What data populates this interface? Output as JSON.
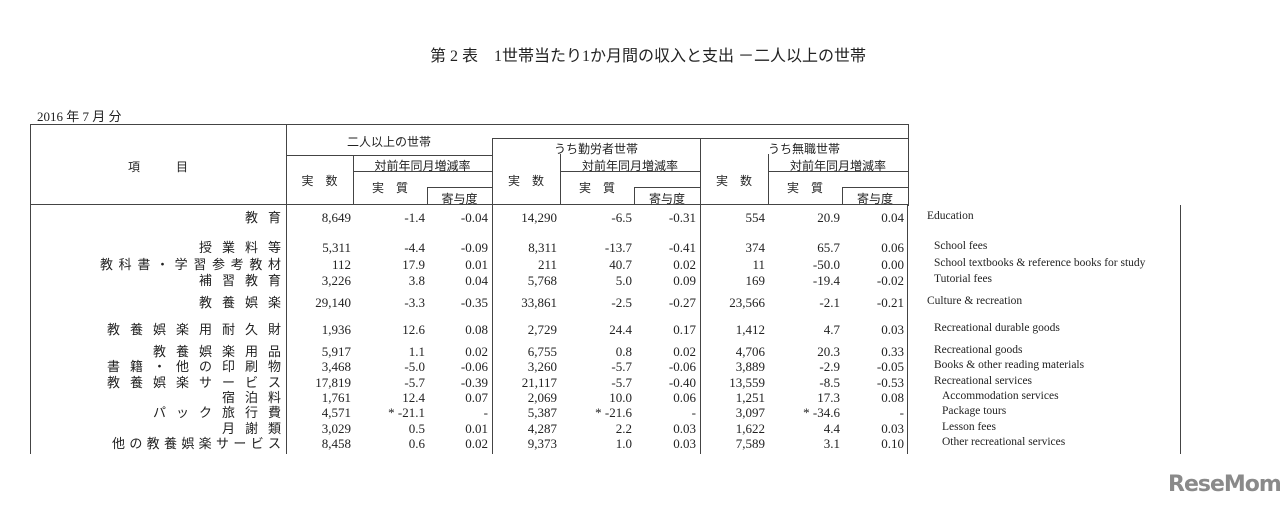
{
  "title": "第 2 表　1世帯当たり1か月間の収入と支出 －二人以上の世帯",
  "period": "2016 年  7  月  分",
  "header": {
    "item": "項　　　目",
    "groups": [
      "二人以上の世帯",
      "うち勤労者世帯",
      "うち無職世帯"
    ],
    "actual": "実　数",
    "yoy": "対前年同月増減率",
    "real": "実　質",
    "contribution": "寄与度"
  },
  "rows": [
    {
      "label": "教育",
      "en": "Education",
      "level": 0,
      "values": [
        "8,649",
        "-1.4",
        "-0.04",
        "14,290",
        "-6.5",
        "-0.31",
        "554",
        "20.9",
        "0.04"
      ]
    },
    {
      "label": "授業料等",
      "en": "School fees",
      "level": 1,
      "values": [
        "5,311",
        "-4.4",
        "-0.09",
        "8,311",
        "-13.7",
        "-0.41",
        "374",
        "65.7",
        "0.06"
      ]
    },
    {
      "label": "教科書・学習参考教材",
      "en": "School textbooks & reference books for study",
      "level": 1,
      "values": [
        "112",
        "17.9",
        "0.01",
        "211",
        "40.7",
        "0.02",
        "11",
        "-50.0",
        "0.00"
      ]
    },
    {
      "label": "補習教育",
      "en": "Tutorial fees",
      "level": 1,
      "values": [
        "3,226",
        "3.8",
        "0.04",
        "5,768",
        "5.0",
        "0.09",
        "169",
        "-19.4",
        "-0.02"
      ]
    },
    {
      "label": "教養娯楽",
      "en": "Culture & recreation",
      "level": 0,
      "values": [
        "29,140",
        "-3.3",
        "-0.35",
        "33,861",
        "-2.5",
        "-0.27",
        "23,566",
        "-2.1",
        "-0.21"
      ]
    },
    {
      "label": "教養娯楽用耐久財",
      "en": "Recreational durable goods",
      "level": 1,
      "values": [
        "1,936",
        "12.6",
        "0.08",
        "2,729",
        "24.4",
        "0.17",
        "1,412",
        "4.7",
        "0.03"
      ]
    },
    {
      "label": "教養娯楽用品",
      "en": "Recreational  goods",
      "level": 1,
      "values": [
        "5,917",
        "1.1",
        "0.02",
        "6,755",
        "0.8",
        "0.02",
        "4,706",
        "20.3",
        "0.33"
      ]
    },
    {
      "label": "書籍・他の印刷物",
      "en": "Books & other reading materials",
      "level": 1,
      "values": [
        "3,468",
        "-5.0",
        "-0.06",
        "3,260",
        "-5.7",
        "-0.06",
        "3,889",
        "-2.9",
        "-0.05"
      ]
    },
    {
      "label": "教養娯楽サービス",
      "en": "Recreational services",
      "level": 1,
      "values": [
        "17,819",
        "-5.7",
        "-0.39",
        "21,117",
        "-5.7",
        "-0.40",
        "13,559",
        "-8.5",
        "-0.53"
      ]
    },
    {
      "label": "宿泊料",
      "en": "Accommodation services",
      "level": 2,
      "values": [
        "1,761",
        "12.4",
        "0.07",
        "2,069",
        "10.0",
        "0.06",
        "1,251",
        "17.3",
        "0.08"
      ]
    },
    {
      "label": "パック旅行費",
      "en": "Package tours",
      "level": 2,
      "values": [
        "4,571",
        "* -21.1",
        "-",
        "5,387",
        "* -21.6",
        "-",
        "3,097",
        "* -34.6",
        "-"
      ]
    },
    {
      "label": "月謝類",
      "en": "Lesson fees",
      "level": 2,
      "values": [
        "3,029",
        "0.5",
        "0.01",
        "4,287",
        "2.2",
        "0.03",
        "1,622",
        "4.4",
        "0.03"
      ]
    },
    {
      "label": "他の教養娯楽サービス",
      "en": "Other recreational services",
      "level": 2,
      "values": [
        "8,458",
        "0.6",
        "0.02",
        "9,373",
        "1.0",
        "0.03",
        "7,589",
        "3.1",
        "0.10"
      ]
    }
  ],
  "logo": "ReseMom"
}
